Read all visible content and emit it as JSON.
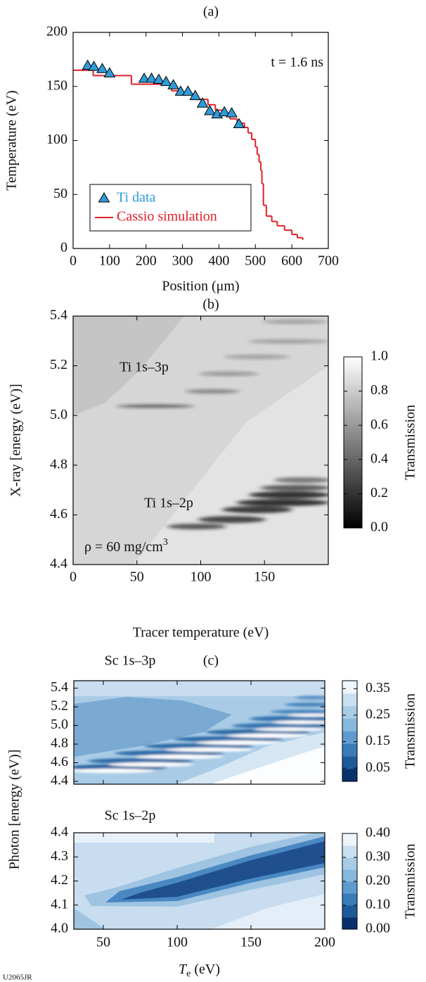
{
  "figure_label": "U2065JR",
  "chart_data": [
    {
      "type": "line",
      "panel_label": "(a)",
      "xlabel": "Position (μm)",
      "ylabel": "Temperature (eV)",
      "annotation": "t = 1.6 ns",
      "xlim": [
        0,
        700
      ],
      "xticks": [
        0,
        100,
        200,
        300,
        400,
        500,
        600,
        700
      ],
      "ylim": [
        0,
        200
      ],
      "yticks": [
        0,
        50,
        100,
        150,
        200
      ],
      "legend": "lower left",
      "series": [
        {
          "name": "Ti data",
          "color": "#2f9bd8",
          "marker": "triangle",
          "x": [
            40,
            57,
            80,
            100,
            195,
            215,
            235,
            255,
            275,
            295,
            315,
            335,
            355,
            375,
            395,
            415,
            435,
            455
          ],
          "values": [
            169,
            168,
            166,
            162,
            157,
            157,
            156,
            154,
            151,
            145,
            145,
            141,
            134,
            127,
            124,
            126,
            125,
            115
          ]
        },
        {
          "name": "Cassio simulation",
          "color": "#e0202a",
          "step": true,
          "x": [
            0,
            55,
            160,
            270,
            300,
            340,
            370,
            390,
            410,
            430,
            450,
            470,
            480,
            490,
            500,
            505,
            510,
            515,
            518,
            522,
            530,
            545,
            560,
            580,
            600,
            615,
            630
          ],
          "values": [
            165,
            160,
            152,
            146,
            143,
            138,
            133,
            128,
            124,
            120,
            116,
            112,
            107,
            101,
            94,
            87,
            80,
            72,
            60,
            40,
            30,
            25,
            21,
            17,
            13,
            10,
            8
          ]
        }
      ]
    },
    {
      "type": "heatmap",
      "panel_label": "(b)",
      "xlabel": "Tracer temperature (eV)",
      "ylabel": "X-ray [energy (eV)]",
      "annotations": [
        "Ti 1s–3p",
        "Ti 1s–2p"
      ],
      "density_label": [
        "ρ = 60 mg/cm",
        "3"
      ],
      "xlim": [
        0,
        200
      ],
      "xticks": [
        0,
        50,
        100,
        150
      ],
      "ylim": [
        4.4,
        5.4
      ],
      "yticks": [
        4.4,
        4.6,
        4.8,
        {
          "value": 5,
          "label": "5.0"
        },
        5.2,
        5.4
      ],
      "colorbar_label": "Transmission",
      "clim": [
        0,
        1
      ],
      "cticks": [
        {
          "value": 0,
          "label": "0.0"
        },
        0.2,
        0.4,
        0.6,
        0.8,
        {
          "value": 1,
          "label": "1.0"
        }
      ]
    },
    {
      "type": "contour",
      "panel_label": "(c)",
      "title": "Sc 1s–3p",
      "xlim": [
        30,
        200
      ],
      "xticks": [
        50,
        100,
        150,
        200
      ],
      "ylim": [
        4.37,
        5.48
      ],
      "yticks": [
        4.4,
        4.6,
        4.8,
        {
          "value": 5,
          "label": "5.0"
        },
        5.2,
        5.4
      ],
      "colorbar_label": "Transmission",
      "clim": [
        0,
        0.38
      ],
      "cticks": [
        0.05,
        0.15,
        0.25,
        0.35
      ]
    },
    {
      "type": "contour",
      "title": "Sc 1s–2p",
      "xlabel": [
        "T",
        "e",
        " (eV)"
      ],
      "ylabel": "Photon [energy (eV)]",
      "xlim": [
        30,
        200
      ],
      "xticks": [
        50,
        100,
        150,
        200
      ],
      "ylim": [
        4.0,
        4.4
      ],
      "yticks": [
        {
          "value": 4,
          "label": "4.0"
        },
        4.1,
        4.2,
        4.3,
        4.4
      ],
      "colorbar_label": "Transmission",
      "clim": [
        0,
        0.4
      ],
      "cticks": [
        {
          "value": 0,
          "label": "0.00"
        },
        {
          "value": 0.1,
          "label": "0.10"
        },
        {
          "value": 0.2,
          "label": "0.20"
        },
        {
          "value": 0.3,
          "label": "0.30"
        },
        {
          "value": 0.4,
          "label": "0.40"
        }
      ]
    }
  ]
}
